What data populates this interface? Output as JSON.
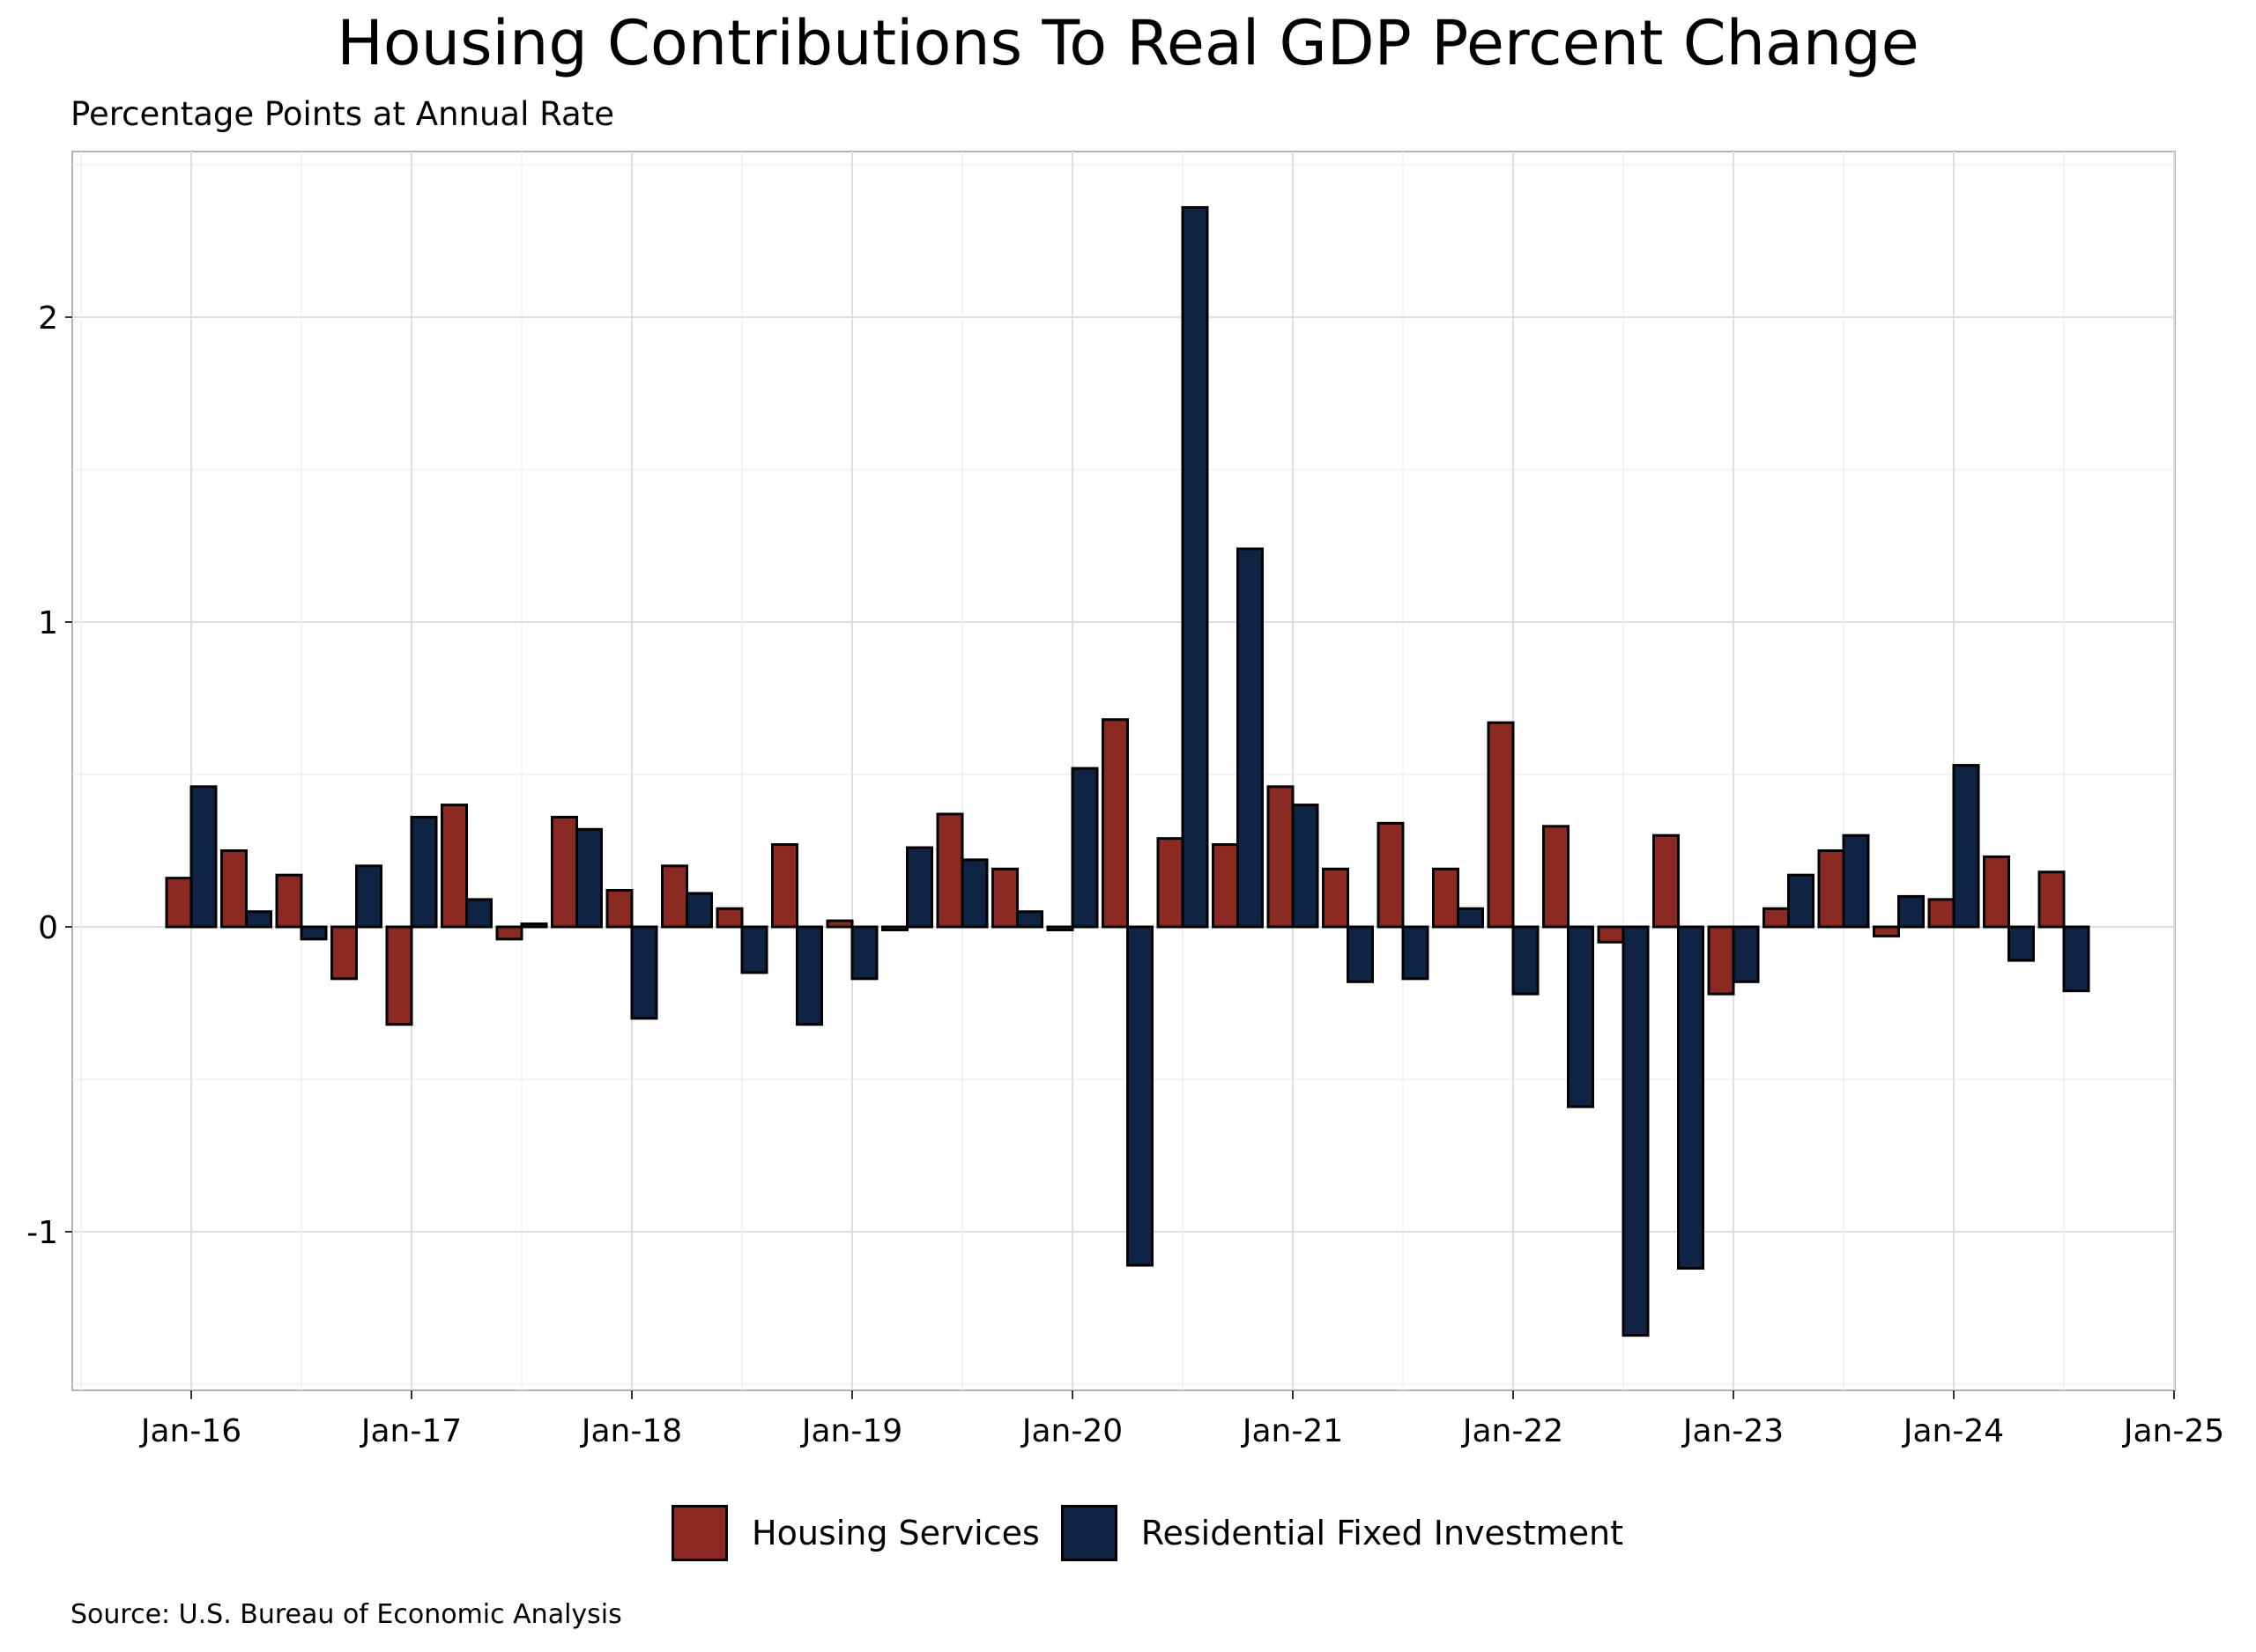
{
  "chart_data": {
    "type": "bar",
    "title": "Housing Contributions To Real GDP Percent Change",
    "subtitle": "Percentage Points at Annual Rate",
    "source": "Source: U.S. Bureau of Economic Analysis",
    "xlabel": "",
    "ylabel": "",
    "ylim": [
      -1.52,
      2.55
    ],
    "yticks": [
      -1,
      0,
      1,
      2
    ],
    "xtick_labels": [
      "Jan-16",
      "Jan-17",
      "Jan-18",
      "Jan-19",
      "Jan-20",
      "Jan-21",
      "Jan-22",
      "Jan-23",
      "Jan-24",
      "Jan-25"
    ],
    "grid": true,
    "legend_position": "bottom",
    "categories": [
      "2016-Q1",
      "2016-Q2",
      "2016-Q3",
      "2016-Q4",
      "2017-Q1",
      "2017-Q2",
      "2017-Q3",
      "2017-Q4",
      "2018-Q1",
      "2018-Q2",
      "2018-Q3",
      "2018-Q4",
      "2019-Q1",
      "2019-Q2",
      "2019-Q3",
      "2019-Q4",
      "2020-Q1",
      "2020-Q2",
      "2020-Q3",
      "2020-Q4",
      "2021-Q1",
      "2021-Q2",
      "2021-Q3",
      "2021-Q4",
      "2022-Q1",
      "2022-Q2",
      "2022-Q3",
      "2022-Q4",
      "2023-Q1",
      "2023-Q2",
      "2023-Q3",
      "2023-Q4",
      "2024-Q1",
      "2024-Q2",
      "2024-Q3"
    ],
    "series": [
      {
        "name": "Housing Services",
        "color": "#8B2A22",
        "values": [
          0.16,
          0.25,
          0.17,
          -0.17,
          -0.32,
          0.4,
          -0.04,
          0.36,
          0.12,
          0.2,
          0.06,
          0.27,
          0.02,
          -0.01,
          0.37,
          0.19,
          -0.01,
          0.68,
          0.29,
          0.27,
          0.46,
          0.19,
          0.34,
          0.19,
          0.67,
          0.33,
          -0.05,
          0.3,
          -0.22,
          0.06,
          0.25,
          -0.03,
          0.09,
          0.23,
          0.18
        ]
      },
      {
        "name": "Residential Fixed Investment",
        "color": "#0F2444",
        "values": [
          0.46,
          0.05,
          -0.04,
          0.2,
          0.36,
          0.09,
          0.01,
          0.32,
          -0.3,
          0.11,
          -0.15,
          -0.32,
          -0.17,
          0.26,
          0.22,
          0.05,
          0.52,
          -1.11,
          2.36,
          1.24,
          0.4,
          -0.18,
          -0.17,
          0.06,
          -0.22,
          -0.59,
          -1.34,
          -1.12,
          -0.18,
          0.17,
          0.3,
          0.1,
          0.53,
          -0.11,
          -0.21
        ]
      }
    ]
  }
}
